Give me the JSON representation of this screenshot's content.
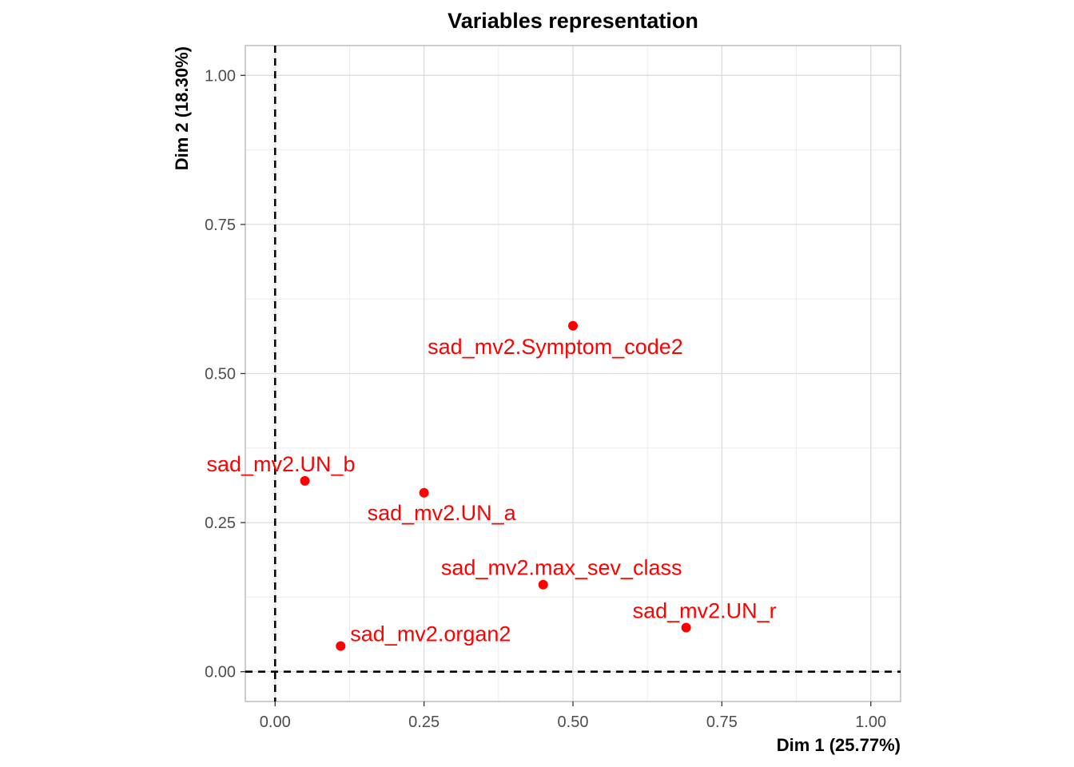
{
  "chart_data": {
    "type": "scatter",
    "title": "Variables representation",
    "xlabel": "Dim 1 (25.77%)",
    "ylabel": "Dim 2 (18.30%)",
    "xlim": [
      -0.05,
      1.05
    ],
    "ylim": [
      -0.05,
      1.05
    ],
    "x_ticks": [
      0.0,
      0.25,
      0.5,
      0.75,
      1.0
    ],
    "y_ticks": [
      0.0,
      0.25,
      0.5,
      0.75,
      1.0
    ],
    "x_tick_labels": [
      "0.00",
      "0.25",
      "0.50",
      "0.75",
      "1.00"
    ],
    "y_tick_labels": [
      "0.00",
      "0.25",
      "0.50",
      "0.75",
      "1.00"
    ],
    "grid": true,
    "reference_lines": {
      "x": 0,
      "y": 0,
      "style": "dashed"
    },
    "point_color": "#ff0000",
    "points": [
      {
        "label": "sad_mv2.Symptom_code2",
        "x": 0.5,
        "y": 0.58
      },
      {
        "label": "sad_mv2.UN_b",
        "x": 0.05,
        "y": 0.32
      },
      {
        "label": "sad_mv2.UN_a",
        "x": 0.25,
        "y": 0.3
      },
      {
        "label": "sad_mv2.max_sev_class",
        "x": 0.45,
        "y": 0.146
      },
      {
        "label": "sad_mv2.UN_r",
        "x": 0.69,
        "y": 0.074
      },
      {
        "label": "sad_mv2.organ2",
        "x": 0.11,
        "y": 0.043
      }
    ]
  }
}
